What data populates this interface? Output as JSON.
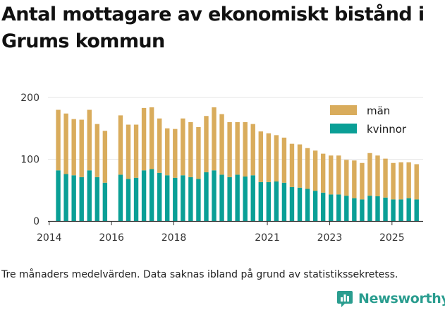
{
  "title": "Antal mottagare av ekonomiskt bistånd i Grums kommun",
  "footnote": "Tre månaders medelvärden. Data saknas ibland på grund av statistikssekretess.",
  "brand": "Newsworthy",
  "colors": {
    "man": "#d9ac5c",
    "kvinnor": "#0a9f96",
    "axis": "#333333",
    "grid": "#e6e6e6"
  },
  "chart_data": {
    "type": "bar",
    "stacked": true,
    "title": "Antal mottagare av ekonomiskt bistånd i Grums kommun",
    "xlabel": "",
    "ylabel": "",
    "ylim": [
      0,
      200
    ],
    "yticks": [
      0,
      100,
      200
    ],
    "xlim": [
      2013.96,
      2026.0
    ],
    "xticks": [
      {
        "label": "2014",
        "value": 2014.0
      },
      {
        "label": "2016",
        "value": 2016.0
      },
      {
        "label": "2018",
        "value": 2018.0
      },
      {
        "label": "2021",
        "value": 2021.0
      },
      {
        "label": "2023",
        "value": 2023.0
      },
      {
        "label": "2025",
        "value": 2025.0
      }
    ],
    "legend": {
      "position": "top-right",
      "order": [
        "män",
        "kvinnor"
      ]
    },
    "x": [
      2014.29,
      2014.54,
      2014.79,
      2015.04,
      2015.29,
      2015.54,
      2015.79,
      2016.29,
      2016.54,
      2016.79,
      2017.04,
      2017.29,
      2017.54,
      2017.79,
      2018.04,
      2018.29,
      2018.54,
      2018.79,
      2019.04,
      2019.29,
      2019.54,
      2019.79,
      2020.04,
      2020.29,
      2020.54,
      2020.79,
      2021.04,
      2021.29,
      2021.54,
      2021.79,
      2022.04,
      2022.29,
      2022.54,
      2022.79,
      2023.04,
      2023.29,
      2023.54,
      2023.79,
      2024.04,
      2024.29,
      2024.54,
      2024.79,
      2025.04,
      2025.29,
      2025.54,
      2025.79
    ],
    "series": [
      {
        "name": "kvinnor",
        "values": [
          82,
          76,
          74,
          71,
          82,
          71,
          62,
          75,
          68,
          70,
          82,
          84,
          78,
          74,
          70,
          74,
          71,
          68,
          79,
          82,
          75,
          71,
          75,
          72,
          74,
          63,
          63,
          64,
          62,
          55,
          54,
          52,
          49,
          46,
          43,
          43,
          41,
          37,
          35,
          41,
          40,
          38,
          35,
          35,
          37,
          35
        ]
      },
      {
        "name": "män",
        "values": [
          98,
          98,
          91,
          93,
          98,
          86,
          84,
          96,
          88,
          86,
          101,
          100,
          88,
          76,
          79,
          92,
          89,
          84,
          91,
          102,
          98,
          89,
          85,
          88,
          83,
          82,
          79,
          75,
          73,
          70,
          70,
          66,
          65,
          63,
          63,
          63,
          58,
          61,
          59,
          69,
          66,
          63,
          59,
          60,
          58,
          57
        ]
      }
    ]
  }
}
